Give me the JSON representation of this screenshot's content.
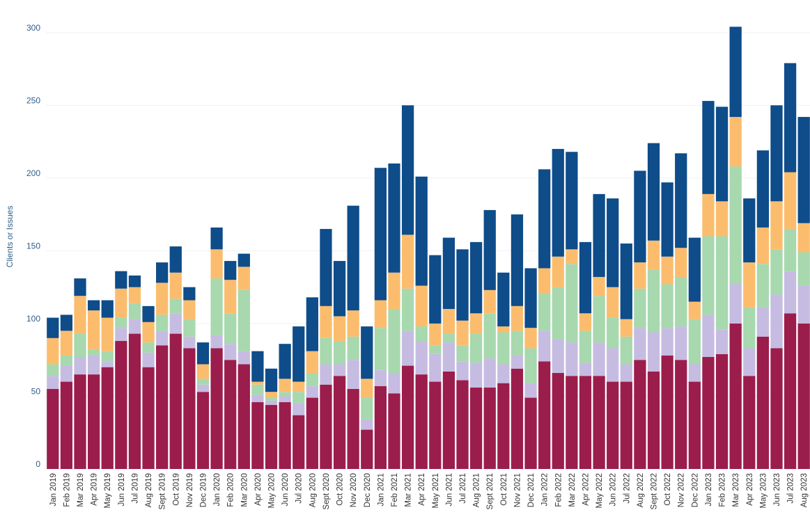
{
  "chart_data": {
    "type": "stacked-bar",
    "y_label": "Clients or Issues",
    "categories": [
      "Jan 2019",
      "Feb 2019",
      "Mar 2019",
      "Apr 2019",
      "May 2019",
      "Jun 2019",
      "Jul 2019",
      "Aug 2019",
      "Sept 2019",
      "Oct 2019",
      "Nov 2019",
      "Dec 2019",
      "Jan 2020",
      "Feb 2020",
      "Mar 2020",
      "Apr 2020",
      "May 2020",
      "Jun 2020",
      "Jul 2020",
      "Aug 2020",
      "Sept 2020",
      "Oct 2020",
      "Nov 2020",
      "Dec 2020",
      "Jan 2021",
      "Feb 2021",
      "Mar 2021",
      "Apr 2021",
      "May 2021",
      "Jun 2021",
      "Jul 2021",
      "Aug 2021",
      "Sept 2021",
      "Oct 2021",
      "Nov 2021",
      "Dec 2021",
      "Jan 2022",
      "Feb 2022",
      "Mar 2022",
      "Apr 2022",
      "May 2022",
      "Jun 2022",
      "Jul 2022",
      "Aug 2022",
      "Sept 2022",
      "Oct 2022",
      "Nov 2022",
      "Dec 2022",
      "Jan 2023",
      "Feb 2023",
      "Mar 2023",
      "Apr 2023",
      "May 2023",
      "Jun 2023",
      "Jul 2023",
      "Aug 2023"
    ],
    "series": [
      {
        "color": "#9b1d4c",
        "values": [
          55,
          60,
          65,
          65,
          70,
          88,
          93,
          70,
          85,
          93,
          83,
          53,
          83,
          75,
          72,
          46,
          44,
          46,
          37,
          49,
          58,
          64,
          55,
          27,
          57,
          52,
          71,
          65,
          60,
          67,
          61,
          56,
          56,
          59,
          69,
          49,
          74,
          66,
          64,
          64,
          64,
          60,
          60,
          75,
          67,
          78,
          75,
          60,
          77,
          79,
          100,
          64,
          91,
          83,
          107,
          100
        ]
      },
      {
        "color": "#c6bce2",
        "values": [
          9,
          11,
          12,
          13,
          4,
          9,
          10,
          10,
          10,
          14,
          8,
          5,
          9,
          11,
          9,
          5,
          3,
          4,
          8,
          8,
          14,
          8,
          20,
          7,
          11,
          14,
          24,
          23,
          19,
          20,
          13,
          17,
          20,
          13,
          9,
          10,
          21,
          23,
          23,
          9,
          23,
          23,
          12,
          22,
          27,
          19,
          23,
          12,
          29,
          17,
          27,
          19,
          20,
          37,
          29,
          26
        ]
      },
      {
        "color": "#a7d8ae",
        "values": [
          8,
          7,
          16,
          4,
          7,
          7,
          11,
          7,
          11,
          10,
          12,
          4,
          39,
          21,
          42,
          7,
          2,
          3,
          8,
          9,
          18,
          16,
          16,
          15,
          29,
          44,
          29,
          10,
          6,
          6,
          11,
          20,
          31,
          22,
          17,
          24,
          26,
          36,
          54,
          22,
          32,
          21,
          19,
          27,
          43,
          30,
          34,
          31,
          54,
          64,
          81,
          28,
          30,
          31,
          29,
          23
        ]
      },
      {
        "color": "#fbbd6d",
        "values": [
          18,
          17,
          26,
          27,
          23,
          20,
          11,
          14,
          22,
          18,
          13,
          10,
          20,
          23,
          16,
          2,
          4,
          9,
          7,
          15,
          22,
          17,
          18,
          13,
          19,
          25,
          37,
          28,
          15,
          17,
          17,
          14,
          16,
          4,
          17,
          14,
          17,
          21,
          10,
          12,
          13,
          21,
          12,
          18,
          20,
          19,
          20,
          12,
          29,
          24,
          34,
          31,
          25,
          33,
          39,
          20
        ]
      },
      {
        "color": "#0e4c8a",
        "values": [
          14,
          11,
          12,
          7,
          12,
          12,
          8,
          11,
          14,
          18,
          9,
          15,
          15,
          13,
          9,
          21,
          16,
          24,
          38,
          37,
          53,
          38,
          72,
          36,
          91,
          75,
          89,
          75,
          47,
          49,
          49,
          49,
          55,
          37,
          63,
          41,
          68,
          74,
          67,
          49,
          57,
          61,
          52,
          63,
          67,
          51,
          65,
          44,
          64,
          65,
          62,
          44,
          53,
          66,
          75,
          73
        ]
      }
    ],
    "ylim": [
      0,
      320
    ],
    "yticks": [
      0,
      50,
      100,
      150,
      200,
      250,
      300
    ],
    "grid": true
  }
}
